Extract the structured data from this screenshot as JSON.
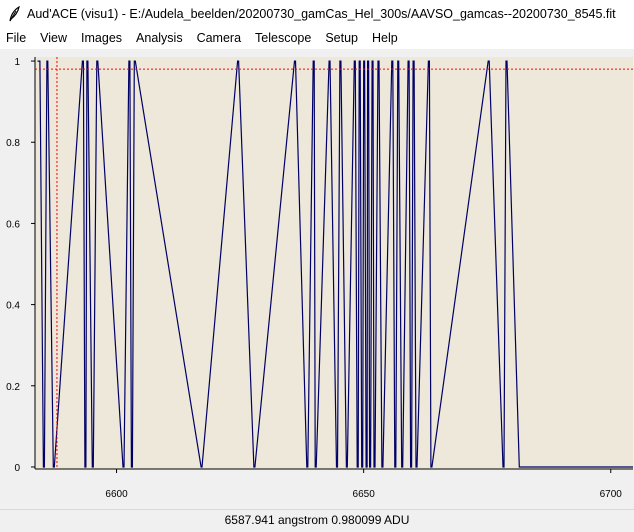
{
  "window": {
    "title": "Aud'ACE (visu1) - E:/Audela_beelden/20200730_gamCas_Hel_300s/AAVSO_gamcas--20200730_8545.fit",
    "icon": "feather-icon"
  },
  "menu": {
    "items": [
      "File",
      "View",
      "Images",
      "Analysis",
      "Camera",
      "Telescope",
      "Setup",
      "Help"
    ]
  },
  "status": {
    "readout": "6587.941 angstrom 0.980099 ADU",
    "clipped_line": "......................"
  },
  "chart_data": {
    "type": "line",
    "title": "",
    "xlabel": "",
    "ylabel": "",
    "xlim": [
      6583.5,
      6704.5
    ],
    "ylim": [
      -0.005,
      1.01
    ],
    "x_ticks": [
      6600,
      6650,
      6700
    ],
    "x_tick_labels": [
      "6600",
      "6650",
      "6700"
    ],
    "y_ticks": [
      0,
      0.2,
      0.4,
      0.6,
      0.8,
      1
    ],
    "y_tick_labels": [
      "0",
      "0.2",
      "0.4",
      "0.6",
      "0.8",
      "1"
    ],
    "grid": false,
    "legend": "none",
    "background_color": "#ede8da",
    "line_color": "#000066",
    "cursor_color": "#ff0000",
    "cursor": {
      "x": 6587.941,
      "y": 0.980099
    },
    "series": [
      {
        "x": [
          6584.0,
          6584.5,
          6585.2,
          6585.4,
          6585.9,
          6586.1,
          6587.2,
          6587.4,
          6593.1,
          6593.3,
          6593.6,
          6593.8,
          6594.0,
          6594.2,
          6595.1,
          6595.3,
          6596.0,
          6596.2,
          6601.3,
          6601.5,
          6602.5,
          6602.7,
          6603.0,
          6603.2,
          6603.6,
          6603.8,
          6617.1,
          6617.3,
          6624.5,
          6624.7,
          6627.8,
          6628.0,
          6636.0,
          6636.2,
          6638.5,
          6638.7,
          6639.8,
          6640.0,
          6640.2,
          6640.4,
          6643.0,
          6643.2,
          6644.5,
          6644.7,
          6645.2,
          6645.4,
          6646.5,
          6646.7,
          6648.1,
          6648.3,
          6648.7,
          6648.9,
          6649.1,
          6649.3,
          6649.6,
          6649.8,
          6650.0,
          6650.2,
          6650.5,
          6650.7,
          6650.8,
          6651.0,
          6651.2,
          6651.4,
          6651.7,
          6651.9,
          6652.1,
          6652.3,
          6652.9,
          6653.1,
          6653.7,
          6653.9,
          6655.7,
          6655.9,
          6656.3,
          6656.5,
          6656.9,
          6657.1,
          6657.7,
          6657.9,
          6659.0,
          6659.2,
          6659.5,
          6659.7,
          6660.0,
          6660.2,
          6660.6,
          6660.8,
          6663.1,
          6663.3,
          6663.6,
          6663.8,
          6675.2,
          6675.4,
          6678.2,
          6678.4,
          6678.8,
          6679.0,
          6681.5,
          6681.7,
          6704.5
        ],
        "y": [
          1,
          1,
          0,
          0,
          1,
          1,
          0,
          0,
          1,
          1,
          0,
          0,
          1,
          1,
          0,
          0,
          1,
          1,
          0,
          0,
          1,
          1,
          0,
          0,
          1,
          1,
          0,
          0,
          1,
          1,
          0,
          0,
          1,
          1,
          0,
          0,
          1,
          1,
          0,
          0,
          1,
          1,
          0,
          0,
          1,
          1,
          0,
          0,
          1,
          1,
          0,
          0,
          1,
          1,
          0,
          0,
          1,
          1,
          0,
          0,
          1,
          1,
          0,
          0,
          1,
          1,
          0,
          0,
          1,
          1,
          0,
          0,
          1,
          1,
          0,
          0,
          1,
          1,
          0,
          0,
          1,
          1,
          0,
          0,
          1,
          1,
          0,
          0,
          1,
          1,
          0,
          0,
          1,
          1,
          0,
          0,
          1,
          1,
          0,
          0,
          0
        ]
      }
    ]
  }
}
